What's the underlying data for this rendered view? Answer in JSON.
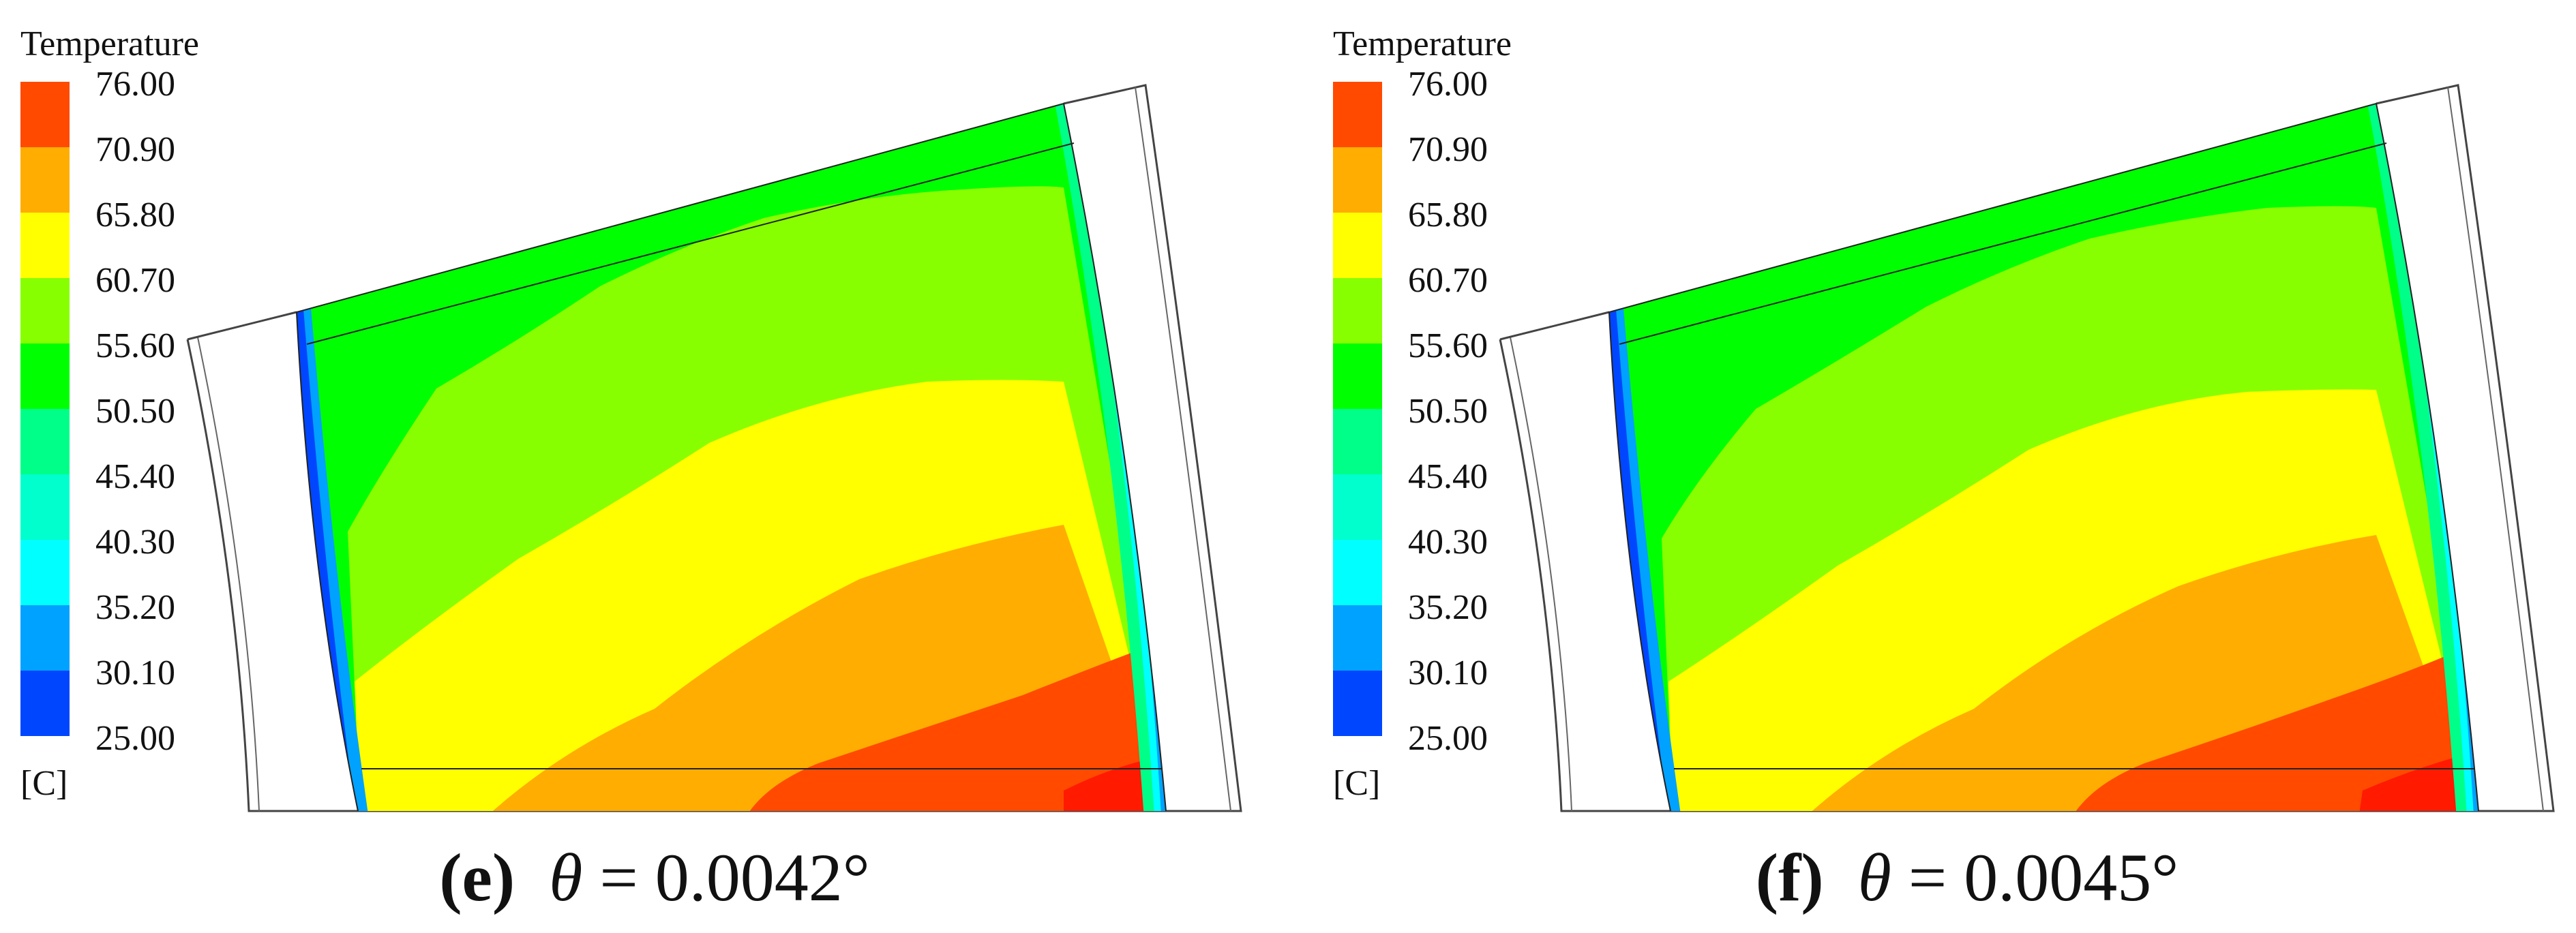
{
  "legend": {
    "title": "Temperature",
    "unit": "[C]",
    "ticks": [
      "76.00",
      "70.90",
      "65.80",
      "60.70",
      "55.60",
      "50.50",
      "45.40",
      "40.30",
      "35.20",
      "30.10",
      "25.00"
    ],
    "colors": [
      "#ff4a00",
      "#ffad00",
      "#ffff00",
      "#88ff00",
      "#00ff00",
      "#00ff88",
      "#00ffcc",
      "#00ffff",
      "#00a2ff",
      "#0046ff"
    ]
  },
  "panels": [
    {
      "letter": "(e)",
      "theta_symbol": "θ",
      "equals": "=",
      "angle": "0.0042°"
    },
    {
      "letter": "(f)",
      "theta_symbol": "θ",
      "equals": "=",
      "angle": "0.0045°"
    }
  ]
}
